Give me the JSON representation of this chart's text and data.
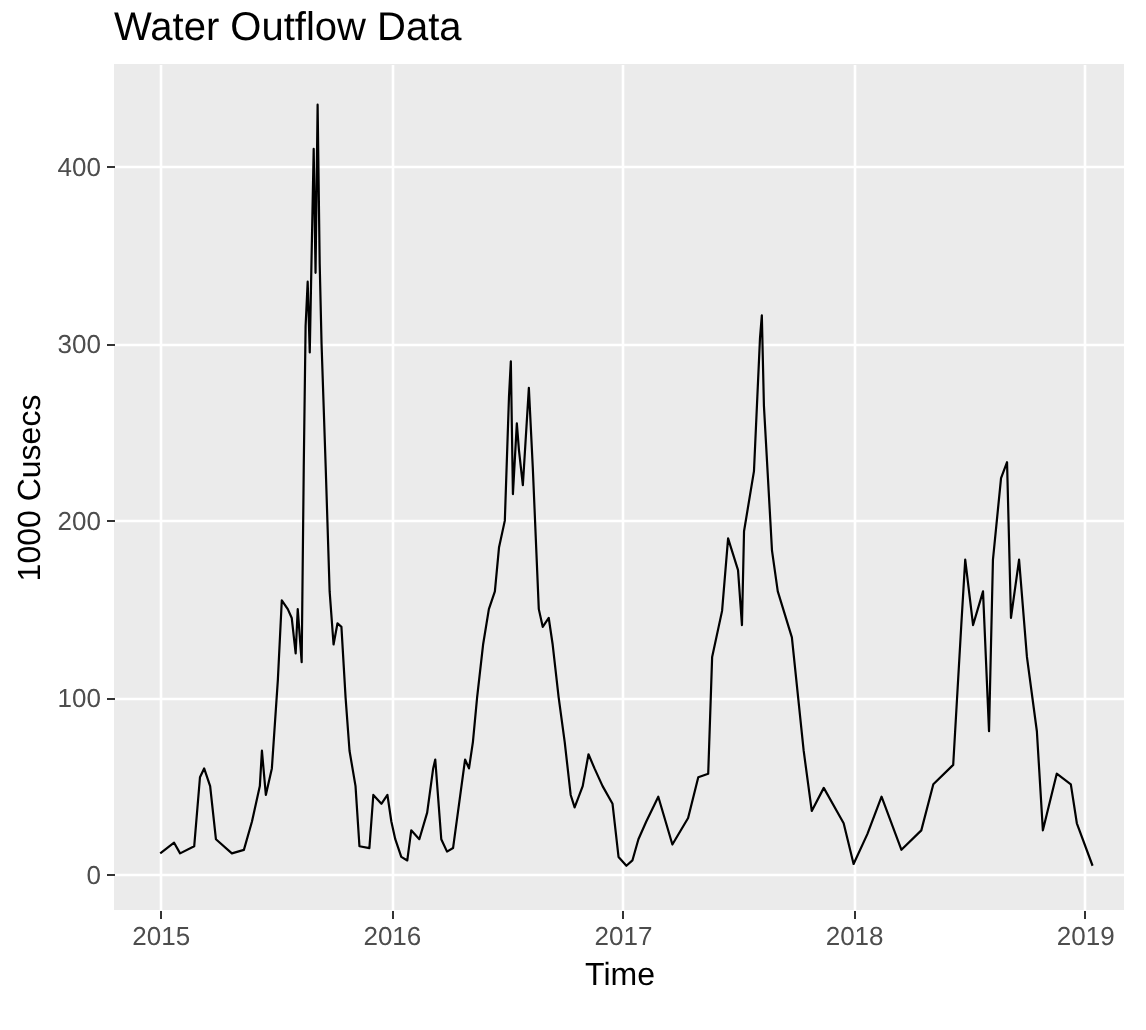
{
  "chart_data": {
    "type": "line",
    "title": "Water Outflow Data",
    "xlabel": "Time",
    "ylabel": "1000 Cusecs",
    "x": [
      2015.0,
      2015.06,
      2015.086,
      2015.147,
      2015.172,
      2015.19,
      2015.216,
      2015.241,
      2015.31,
      2015.362,
      2015.397,
      2015.431,
      2015.44,
      2015.457,
      2015.483,
      2015.509,
      2015.526,
      2015.552,
      2015.569,
      2015.586,
      2015.595,
      2015.612,
      2015.621,
      2015.629,
      2015.638,
      2015.647,
      2015.655,
      2015.664,
      2015.672,
      2015.681,
      2015.69,
      2015.698,
      2015.716,
      2015.733,
      2015.75,
      2015.767,
      2015.784,
      2015.802,
      2015.819,
      2015.845,
      2015.862,
      2015.905,
      2015.922,
      2015.957,
      2015.983,
      2016.0,
      2016.017,
      2016.043,
      2016.069,
      2016.086,
      2016.121,
      2016.155,
      2016.181,
      2016.19,
      2016.216,
      2016.241,
      2016.267,
      2016.293,
      2016.319,
      2016.336,
      2016.353,
      2016.371,
      2016.397,
      2016.422,
      2016.448,
      2016.466,
      2016.491,
      2016.509,
      2016.517,
      2016.526,
      2016.543,
      2016.552,
      2016.569,
      2016.595,
      2016.612,
      2016.638,
      2016.655,
      2016.681,
      2016.698,
      2016.724,
      2016.75,
      2016.776,
      2016.793,
      2016.828,
      2016.853,
      2016.879,
      2016.914,
      2016.957,
      2016.983,
      2017.017,
      2017.043,
      2017.069,
      2017.103,
      2017.155,
      2017.216,
      2017.284,
      2017.328,
      2017.371,
      2017.388,
      2017.431,
      2017.457,
      2017.5,
      2017.517,
      2017.526,
      2017.569,
      2017.595,
      2017.603,
      2017.612,
      2017.647,
      2017.672,
      2017.733,
      2017.784,
      2017.819,
      2017.871,
      2017.957,
      2018.0,
      2018.06,
      2018.121,
      2018.207,
      2018.293,
      2018.345,
      2018.431,
      2018.466,
      2018.483,
      2018.517,
      2018.56,
      2018.586,
      2018.603,
      2018.638,
      2018.664,
      2018.681,
      2018.716,
      2018.75,
      2018.793,
      2018.819,
      2018.879,
      2018.94,
      2018.966,
      2019.034
    ],
    "series": [
      {
        "color": "#000000",
        "values": [
          12,
          18,
          12,
          16,
          55,
          60,
          50,
          20,
          12,
          14,
          30,
          50,
          70,
          45,
          60,
          110,
          155,
          150,
          145,
          125,
          150,
          120,
          230,
          310,
          335,
          295,
          350,
          410,
          340,
          435,
          345,
          300,
          230,
          160,
          130,
          142,
          140,
          100,
          70,
          50,
          16,
          15,
          45,
          40,
          45,
          30,
          20,
          10,
          8,
          25,
          20,
          35,
          60,
          65,
          20,
          13,
          15,
          40,
          65,
          60,
          75,
          100,
          130,
          150,
          160,
          185,
          200,
          270,
          290,
          215,
          255,
          240,
          220,
          275,
          230,
          150,
          140,
          145,
          130,
          100,
          75,
          45,
          38,
          50,
          68,
          60,
          50,
          40,
          10,
          5,
          8,
          20,
          30,
          44,
          17,
          32,
          55,
          57,
          123,
          149,
          190,
          172,
          141,
          194,
          228,
          303,
          316,
          265,
          183,
          160,
          134,
          70,
          36,
          49,
          29,
          6,
          23,
          44,
          14,
          25,
          51,
          62,
          141,
          178,
          141,
          160,
          81,
          178,
          224,
          233,
          145,
          178,
          123,
          81,
          25,
          57,
          51,
          29,
          5
        ]
      }
    ],
    "xlim": [
      2014.8,
      2019.17
    ],
    "xticks": [
      2015,
      2016,
      2017,
      2018,
      2019
    ],
    "ylim": [
      -20,
      458
    ],
    "yticks": [
      0,
      100,
      200,
      300,
      400
    ],
    "grid": true
  }
}
